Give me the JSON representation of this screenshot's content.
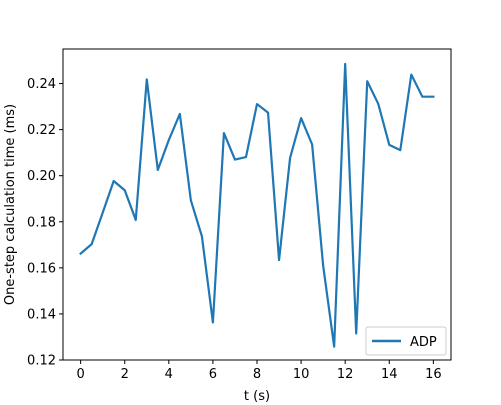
{
  "chart_data": {
    "type": "line",
    "title": "",
    "xlabel": "t (s)",
    "ylabel": "One-step calculation time (ms)",
    "xlim": [
      -0.8,
      16.8
    ],
    "ylim": [
      0.12,
      0.255
    ],
    "xticks": [
      0,
      2,
      4,
      6,
      8,
      10,
      12,
      14,
      16
    ],
    "yticks": [
      0.12,
      0.14,
      0.16,
      0.18,
      0.2,
      0.22,
      0.24
    ],
    "xtick_labels": [
      "0",
      "2",
      "4",
      "6",
      "8",
      "10",
      "12",
      "14",
      "16"
    ],
    "ytick_labels": [
      "0.12",
      "0.14",
      "0.16",
      "0.18",
      "0.20",
      "0.22",
      "0.24"
    ],
    "grid": false,
    "legend_position": "lower-right",
    "series": [
      {
        "name": "ADP",
        "color": "#1f77b4",
        "x": [
          0,
          0.5,
          1,
          1.5,
          2,
          2.5,
          3,
          3.5,
          4,
          4.5,
          5,
          5.5,
          6,
          6.5,
          7,
          7.5,
          8,
          8.5,
          9,
          9.5,
          10,
          10.5,
          11,
          11.5,
          12,
          12.5,
          13,
          13.5,
          14,
          14.5,
          15,
          15.5,
          16
        ],
        "y": [
          0.1662,
          0.1703,
          0.1839,
          0.1977,
          0.1937,
          0.1808,
          0.2418,
          0.2025,
          0.2155,
          0.2268,
          0.1893,
          0.1737,
          0.1363,
          0.2185,
          0.207,
          0.2081,
          0.2311,
          0.2274,
          0.1634,
          0.2077,
          0.225,
          0.2136,
          0.161,
          0.1258,
          0.2485,
          0.1315,
          0.241,
          0.2312,
          0.2134,
          0.2111,
          0.2439,
          0.2343,
          0.2343
        ]
      }
    ]
  }
}
